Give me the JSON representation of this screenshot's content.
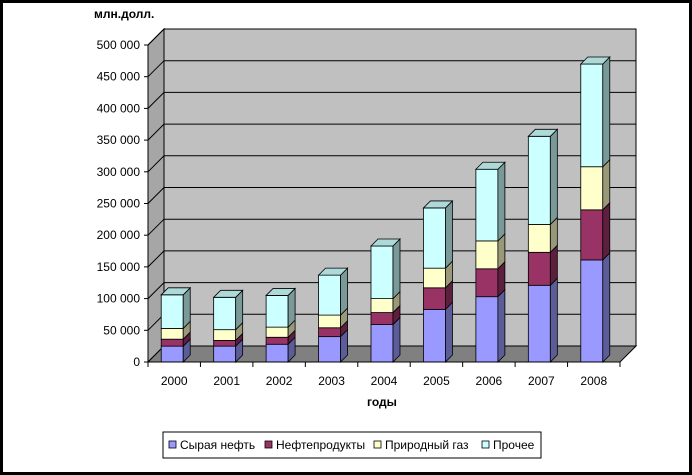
{
  "chart_data": {
    "type": "bar",
    "stacked": true,
    "three_d": true,
    "unit_label": "млн.долл.",
    "xlabel": "годы",
    "categories": [
      "2000",
      "2001",
      "2002",
      "2003",
      "2004",
      "2005",
      "2006",
      "2007",
      "2008"
    ],
    "ylim": [
      0,
      500000
    ],
    "y_ticks": [
      "0",
      "50 000",
      "100 000",
      "150 000",
      "200 000",
      "250 000",
      "300 000",
      "350 000",
      "400 000",
      "450 000",
      "500 000"
    ],
    "grid": true,
    "legend_position": "bottom",
    "series": [
      {
        "name": "Сырая нефть",
        "color": "#9999ff",
        "values": [
          25000,
          25000,
          28000,
          40000,
          59000,
          83000,
          103000,
          121000,
          161000
        ]
      },
      {
        "name": "Нефтепродукты",
        "color": "#993366",
        "values": [
          11000,
          9000,
          11000,
          14000,
          19000,
          34000,
          44000,
          52000,
          79000
        ]
      },
      {
        "name": "Природный газ",
        "color": "#ffffcc",
        "values": [
          17000,
          17000,
          16000,
          20000,
          22000,
          31000,
          44000,
          44000,
          68000
        ]
      },
      {
        "name": "Прочее",
        "color": "#ccffff",
        "values": [
          53000,
          51000,
          50000,
          63000,
          83000,
          95000,
          113000,
          139000,
          162000
        ]
      }
    ]
  }
}
